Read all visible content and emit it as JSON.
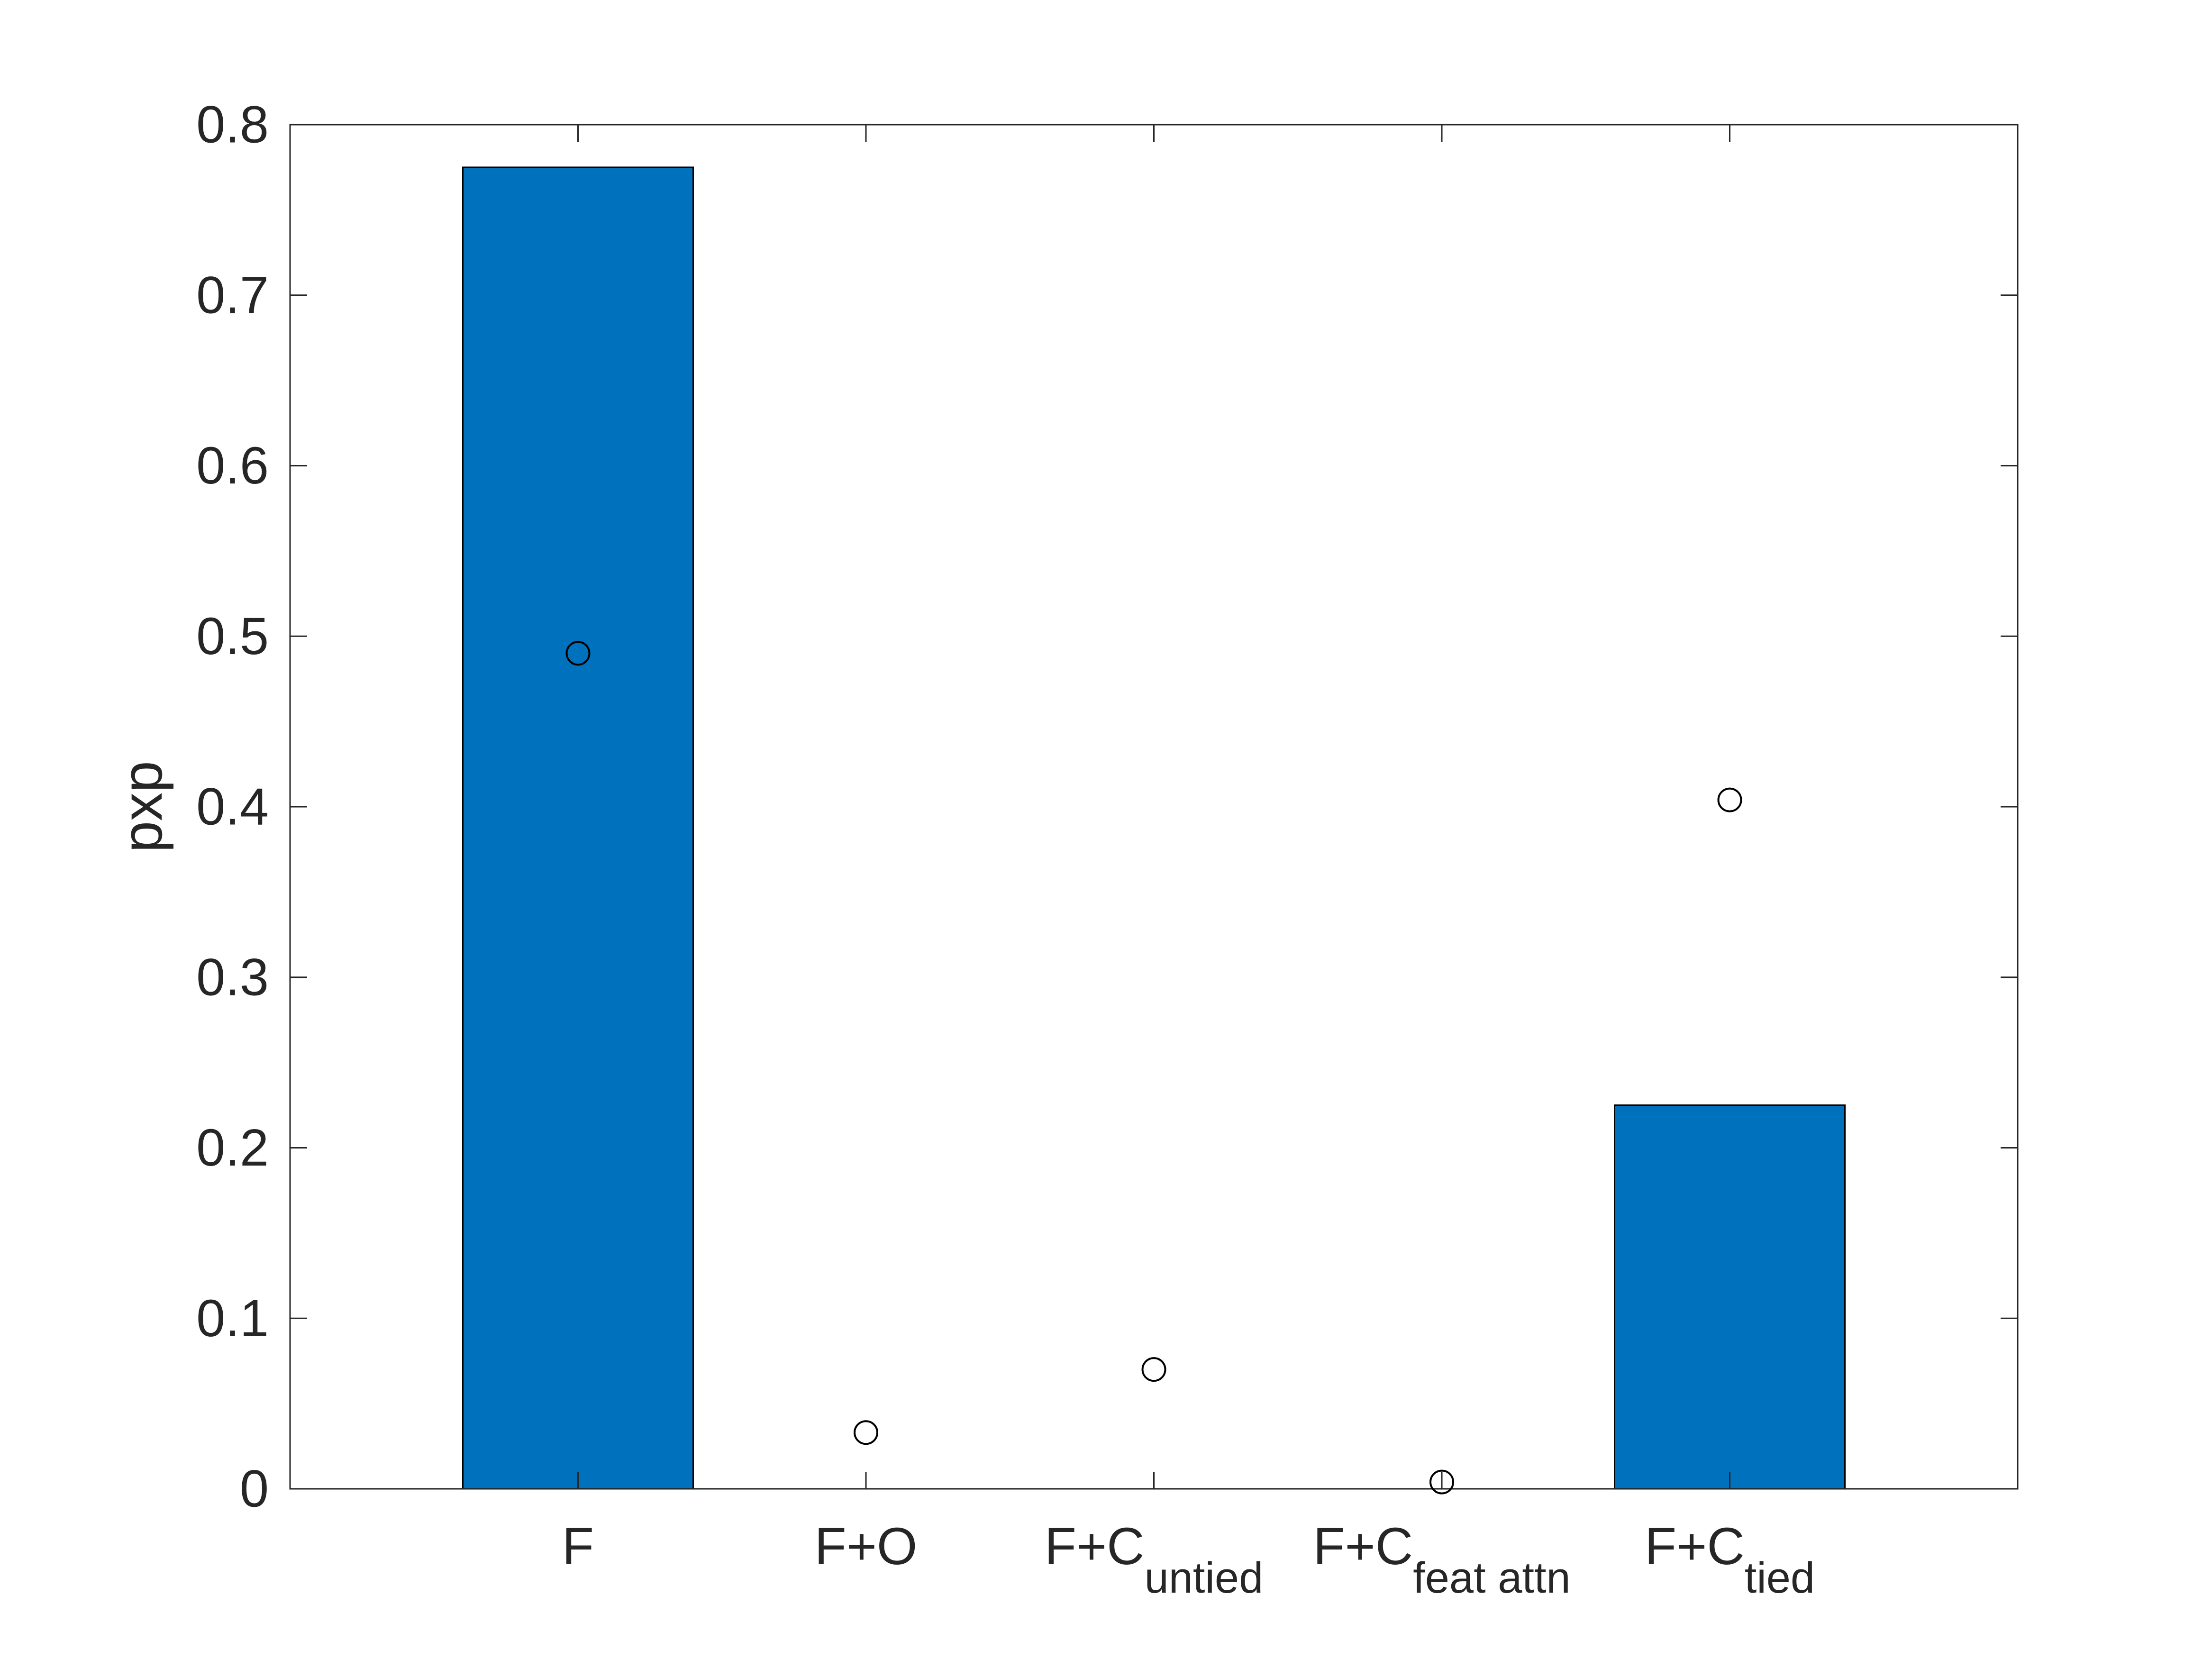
{
  "chart_data": {
    "type": "bar",
    "categories": [
      {
        "main": "F",
        "sub": ""
      },
      {
        "main": "F+O",
        "sub": ""
      },
      {
        "main": "F+C",
        "sub": "untied"
      },
      {
        "main": "F+C",
        "sub": "feat attn"
      },
      {
        "main": "F+C",
        "sub": "tied"
      }
    ],
    "series": [
      {
        "type": "bar",
        "values": [
          0.775,
          0,
          0,
          0,
          0.225
        ],
        "color": "#0072bd"
      },
      {
        "type": "scatter",
        "marker": "open-circle",
        "values": [
          0.49,
          0.033,
          0.07,
          0.004,
          0.404
        ],
        "color": "#000000"
      }
    ],
    "xlabel": "",
    "ylabel": "pxp",
    "ylim": [
      0,
      0.8
    ],
    "yticks": [
      0,
      0.1,
      0.2,
      0.3,
      0.4,
      0.5,
      0.6,
      0.7,
      0.8
    ],
    "ytick_labels": [
      "0",
      "0.1",
      "0.2",
      "0.3",
      "0.4",
      "0.5",
      "0.6",
      "0.7",
      "0.8"
    ],
    "grid": false,
    "legend": "none"
  }
}
